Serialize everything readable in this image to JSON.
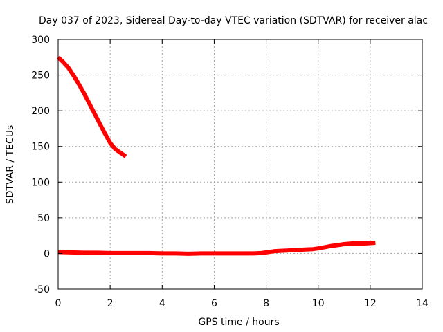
{
  "chart_data": {
    "type": "line",
    "title": "Day 037 of 2023, Sidereal Day-to-day VTEC variation (SDTVAR) for receiver alac",
    "xlabel": "GPS time / hours",
    "ylabel": "SDTVAR / TECUs",
    "xlim": [
      0,
      14
    ],
    "ylim": [
      -50,
      300
    ],
    "x_ticks": [
      0,
      2,
      4,
      6,
      8,
      10,
      12,
      14
    ],
    "y_ticks": [
      -50,
      0,
      50,
      100,
      150,
      200,
      250,
      300
    ],
    "x_tick_labels": [
      "0",
      "2",
      "4",
      "6",
      "8",
      "10",
      "12",
      "14"
    ],
    "y_tick_labels": [
      "-50",
      "0",
      "50",
      "100",
      "150",
      "200",
      "250",
      "300"
    ],
    "grid": true,
    "legend": "none",
    "series_color": "#ff0000",
    "series": [
      {
        "x": [
          0.0,
          0.2,
          0.4,
          0.6,
          0.8,
          1.0,
          1.2,
          1.4,
          1.6,
          1.8,
          2.0,
          2.2,
          2.4,
          2.6
        ],
        "y": [
          275,
          268,
          260,
          249,
          237,
          224,
          210,
          196,
          182,
          168,
          155,
          146,
          141,
          136
        ]
      },
      {
        "x": [
          0.0,
          0.5,
          1.0,
          1.5,
          2.0,
          2.5,
          3.0,
          3.5,
          4.0,
          4.5,
          5.0,
          5.5,
          6.0,
          6.5,
          7.0,
          7.5,
          7.8,
          8.0,
          8.3,
          8.5,
          8.8,
          9.0,
          9.3,
          9.5,
          9.8,
          10.0,
          10.3,
          10.5,
          10.8,
          11.0,
          11.3,
          11.5,
          11.8,
          12.0,
          12.2
        ],
        "y": [
          2,
          1.5,
          1,
          1,
          0.5,
          0.5,
          0.5,
          0.5,
          0,
          0,
          -0.5,
          0,
          0,
          0,
          0,
          0,
          0.5,
          1.5,
          3,
          3.5,
          4,
          4.5,
          5,
          5.5,
          6,
          7,
          9,
          10.5,
          12,
          13,
          14,
          14,
          14,
          14.5,
          15
        ]
      }
    ]
  }
}
